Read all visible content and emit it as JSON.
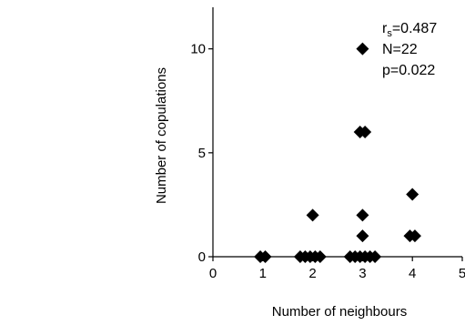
{
  "chart_data": {
    "type": "scatter",
    "title": "",
    "xlabel": "Number of neighbours",
    "ylabel": "Number of copulations",
    "xlim": [
      0,
      5
    ],
    "ylim": [
      0,
      12
    ],
    "x_ticks": [
      0,
      1,
      2,
      3,
      4,
      5
    ],
    "y_ticks": [
      0,
      5,
      10
    ],
    "x_tick_labels": [
      "0",
      "1",
      "2",
      "3",
      "4",
      "5"
    ],
    "y_tick_labels": [
      "0",
      "5",
      "10"
    ],
    "grid": false,
    "marker": "diamond",
    "marker_color": "#000000",
    "points": [
      {
        "x": 0.95,
        "y": 0
      },
      {
        "x": 1.05,
        "y": 0
      },
      {
        "x": 1.75,
        "y": 0
      },
      {
        "x": 1.85,
        "y": 0
      },
      {
        "x": 1.95,
        "y": 0
      },
      {
        "x": 2.05,
        "y": 0
      },
      {
        "x": 2.15,
        "y": 0
      },
      {
        "x": 2.0,
        "y": 2
      },
      {
        "x": 2.75,
        "y": 0
      },
      {
        "x": 2.85,
        "y": 0
      },
      {
        "x": 2.95,
        "y": 0
      },
      {
        "x": 3.05,
        "y": 0
      },
      {
        "x": 3.15,
        "y": 0
      },
      {
        "x": 3.25,
        "y": 0
      },
      {
        "x": 3.0,
        "y": 1
      },
      {
        "x": 3.0,
        "y": 2
      },
      {
        "x": 2.95,
        "y": 6
      },
      {
        "x": 3.05,
        "y": 6
      },
      {
        "x": 3.0,
        "y": 10
      },
      {
        "x": 3.95,
        "y": 1
      },
      {
        "x": 4.05,
        "y": 1
      },
      {
        "x": 4.0,
        "y": 3
      }
    ],
    "annotation": {
      "r_symbol": "r",
      "r_subscript": "s",
      "r_value": "=0.487",
      "n_line": "N=22",
      "p_line": "p=0.022"
    }
  }
}
